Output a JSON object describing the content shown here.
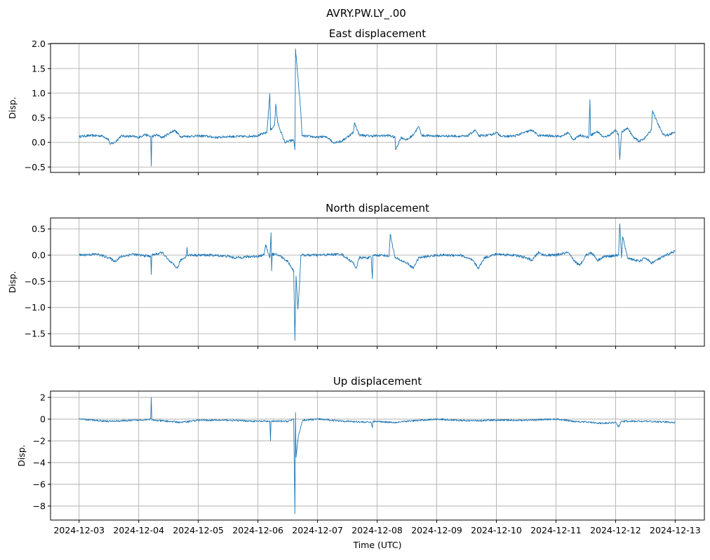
{
  "chart_data": {
    "type": "line",
    "title": "AVRY.PW.LY_.00",
    "xlabel": "Time (UTC)",
    "x_ticks": [
      "2024-12-03",
      "2024-12-04",
      "2024-12-05",
      "2024-12-06",
      "2024-12-07",
      "2024-12-08",
      "2024-12-09",
      "2024-12-10",
      "2024-12-11",
      "2024-12-12",
      "2024-12-13"
    ],
    "x_units": "days since 2024-12-03",
    "xlim": [
      -0.48,
      10.49
    ],
    "color": "#1f77b4",
    "grid": true,
    "panels": [
      {
        "title": "East displacement",
        "ylabel": "Disp.",
        "ylim": [
          -0.61,
          2.01
        ],
        "y_ticks": [
          2.0,
          1.5,
          1.0,
          0.5,
          0.0,
          -0.5
        ],
        "y_tick_labels": [
          "2.0",
          "1.5",
          "1.0",
          "0.5",
          "0.0",
          "−0.5"
        ],
        "show_x_labels": false,
        "noise": 0.025,
        "points": [
          [
            0,
            0.12
          ],
          [
            0.2,
            0.14
          ],
          [
            0.4,
            0.13
          ],
          [
            0.5,
            0.05
          ],
          [
            0.52,
            -0.04
          ],
          [
            0.6,
            0.0
          ],
          [
            0.7,
            0.13
          ],
          [
            0.9,
            0.12
          ],
          [
            1.0,
            0.1
          ],
          [
            1.1,
            0.16
          ],
          [
            1.2,
            0.12
          ],
          [
            1.21,
            -0.48
          ],
          [
            1.22,
            0.12
          ],
          [
            1.3,
            0.15
          ],
          [
            1.4,
            0.1
          ],
          [
            1.6,
            0.25
          ],
          [
            1.7,
            0.12
          ],
          [
            2.0,
            0.13
          ],
          [
            2.1,
            0.13
          ],
          [
            2.3,
            0.1
          ],
          [
            2.5,
            0.12
          ],
          [
            2.8,
            0.12
          ],
          [
            3.0,
            0.14
          ],
          [
            3.15,
            0.2
          ],
          [
            3.2,
            0.99
          ],
          [
            3.21,
            0.25
          ],
          [
            3.28,
            0.35
          ],
          [
            3.3,
            0.78
          ],
          [
            3.33,
            0.4
          ],
          [
            3.45,
            0.0
          ],
          [
            3.6,
            0.05
          ],
          [
            3.62,
            -0.15
          ],
          [
            3.63,
            1.9
          ],
          [
            3.68,
            1.2
          ],
          [
            3.72,
            0.6
          ],
          [
            3.74,
            0.13
          ],
          [
            3.9,
            0.12
          ],
          [
            4.0,
            0.1
          ],
          [
            4.1,
            0.12
          ],
          [
            4.2,
            0.08
          ],
          [
            4.25,
            0.0
          ],
          [
            4.4,
            0.02
          ],
          [
            4.6,
            0.2
          ],
          [
            4.62,
            0.4
          ],
          [
            4.7,
            0.15
          ],
          [
            4.9,
            0.13
          ],
          [
            5.2,
            0.14
          ],
          [
            5.3,
            0.1
          ],
          [
            5.31,
            -0.15
          ],
          [
            5.4,
            0.1
          ],
          [
            5.5,
            0.05
          ],
          [
            5.6,
            0.15
          ],
          [
            5.7,
            0.32
          ],
          [
            5.75,
            0.14
          ],
          [
            6.0,
            0.13
          ],
          [
            6.3,
            0.13
          ],
          [
            6.5,
            0.12
          ],
          [
            6.65,
            0.25
          ],
          [
            6.7,
            0.13
          ],
          [
            6.9,
            0.15
          ],
          [
            7.0,
            0.2
          ],
          [
            7.1,
            0.12
          ],
          [
            7.3,
            0.13
          ],
          [
            7.6,
            0.25
          ],
          [
            7.7,
            0.14
          ],
          [
            8.0,
            0.13
          ],
          [
            8.1,
            0.12
          ],
          [
            8.2,
            0.2
          ],
          [
            8.3,
            0.05
          ],
          [
            8.4,
            0.15
          ],
          [
            8.55,
            0.1
          ],
          [
            8.57,
            0.87
          ],
          [
            8.58,
            0.15
          ],
          [
            8.7,
            0.22
          ],
          [
            8.8,
            0.1
          ],
          [
            8.9,
            0.15
          ],
          [
            9.0,
            0.25
          ],
          [
            9.05,
            0.15
          ],
          [
            9.07,
            -0.35
          ],
          [
            9.1,
            0.2
          ],
          [
            9.2,
            0.3
          ],
          [
            9.3,
            0.1
          ],
          [
            9.4,
            0.02
          ],
          [
            9.5,
            0.1
          ],
          [
            9.6,
            0.25
          ],
          [
            9.62,
            0.65
          ],
          [
            9.7,
            0.4
          ],
          [
            9.8,
            0.15
          ],
          [
            9.9,
            0.15
          ],
          [
            10.0,
            0.22
          ]
        ]
      },
      {
        "title": "North displacement",
        "ylabel": "Disp.",
        "ylim": [
          -1.74,
          0.71
        ],
        "y_ticks": [
          0.5,
          0.0,
          -0.5,
          -1.0,
          -1.5
        ],
        "y_tick_labels": [
          "0.5",
          "0.0",
          "−0.5",
          "−1.0",
          "−1.5"
        ],
        "show_x_labels": false,
        "noise": 0.025,
        "points": [
          [
            0,
            0.0
          ],
          [
            0.3,
            0.02
          ],
          [
            0.5,
            -0.05
          ],
          [
            0.6,
            -0.12
          ],
          [
            0.7,
            -0.03
          ],
          [
            0.9,
            0.02
          ],
          [
            1.0,
            0.0
          ],
          [
            1.2,
            -0.02
          ],
          [
            1.21,
            -0.37
          ],
          [
            1.22,
            0.0
          ],
          [
            1.4,
            0.05
          ],
          [
            1.5,
            -0.1
          ],
          [
            1.65,
            -0.25
          ],
          [
            1.7,
            -0.1
          ],
          [
            1.8,
            -0.02
          ],
          [
            1.81,
            0.15
          ],
          [
            1.82,
            0.0
          ],
          [
            2.2,
            0.0
          ],
          [
            2.5,
            -0.02
          ],
          [
            2.6,
            -0.05
          ],
          [
            3.0,
            -0.02
          ],
          [
            3.1,
            0.0
          ],
          [
            3.13,
            0.2
          ],
          [
            3.2,
            -0.05
          ],
          [
            3.22,
            0.43
          ],
          [
            3.23,
            -0.3
          ],
          [
            3.24,
            0.02
          ],
          [
            3.35,
            0.0
          ],
          [
            3.5,
            -0.12
          ],
          [
            3.6,
            -0.3
          ],
          [
            3.62,
            -1.63
          ],
          [
            3.64,
            -0.4
          ],
          [
            3.67,
            -1.03
          ],
          [
            3.7,
            -0.5
          ],
          [
            3.72,
            0.0
          ],
          [
            4.0,
            0.0
          ],
          [
            4.4,
            0.02
          ],
          [
            4.6,
            -0.15
          ],
          [
            4.65,
            -0.25
          ],
          [
            4.7,
            -0.05
          ],
          [
            4.9,
            -0.05
          ],
          [
            4.92,
            -0.45
          ],
          [
            4.93,
            0.0
          ],
          [
            5.1,
            0.0
          ],
          [
            5.2,
            -0.02
          ],
          [
            5.22,
            0.4
          ],
          [
            5.3,
            -0.05
          ],
          [
            5.5,
            -0.15
          ],
          [
            5.6,
            -0.25
          ],
          [
            5.7,
            -0.05
          ],
          [
            6.0,
            0.0
          ],
          [
            6.4,
            0.0
          ],
          [
            6.6,
            -0.1
          ],
          [
            6.7,
            -0.25
          ],
          [
            6.8,
            -0.05
          ],
          [
            7.0,
            0.02
          ],
          [
            7.3,
            0.0
          ],
          [
            7.5,
            -0.05
          ],
          [
            7.6,
            -0.1
          ],
          [
            7.7,
            0.05
          ],
          [
            7.8,
            0.0
          ],
          [
            8.0,
            0.0
          ],
          [
            8.2,
            0.05
          ],
          [
            8.3,
            -0.1
          ],
          [
            8.4,
            -0.2
          ],
          [
            8.5,
            0.0
          ],
          [
            8.6,
            0.05
          ],
          [
            8.7,
            -0.1
          ],
          [
            8.8,
            -0.03
          ],
          [
            9.05,
            0.0
          ],
          [
            9.07,
            0.6
          ],
          [
            9.1,
            -0.05
          ],
          [
            9.12,
            0.35
          ],
          [
            9.2,
            -0.05
          ],
          [
            9.4,
            -0.12
          ],
          [
            9.5,
            -0.05
          ],
          [
            9.6,
            -0.15
          ],
          [
            9.8,
            -0.03
          ],
          [
            10.0,
            0.08
          ]
        ]
      },
      {
        "title": "Up displacement",
        "ylabel": "Disp.",
        "ylim": [
          -9.29,
          2.58
        ],
        "y_ticks": [
          2,
          0,
          -2,
          -4,
          -6,
          -8
        ],
        "y_tick_labels": [
          "2",
          "0",
          "−2",
          "−4",
          "−6",
          "−8"
        ],
        "show_x_labels": true,
        "noise": 0.08,
        "points": [
          [
            0,
            0
          ],
          [
            0.5,
            -0.2
          ],
          [
            1.0,
            -0.1
          ],
          [
            1.2,
            0
          ],
          [
            1.21,
            2.0
          ],
          [
            1.22,
            -0.1
          ],
          [
            1.5,
            -0.2
          ],
          [
            1.7,
            -0.3
          ],
          [
            2.0,
            -0.1
          ],
          [
            2.5,
            -0.1
          ],
          [
            3.0,
            -0.2
          ],
          [
            3.2,
            -0.2
          ],
          [
            3.21,
            -2.0
          ],
          [
            3.22,
            -0.2
          ],
          [
            3.5,
            -0.2
          ],
          [
            3.6,
            0.0
          ],
          [
            3.62,
            -8.7
          ],
          [
            3.63,
            0.6
          ],
          [
            3.64,
            -3.5
          ],
          [
            3.68,
            -1.5
          ],
          [
            3.75,
            -0.1
          ],
          [
            4.0,
            0
          ],
          [
            4.5,
            -0.2
          ],
          [
            4.9,
            -0.3
          ],
          [
            4.92,
            -0.8
          ],
          [
            4.93,
            -0.2
          ],
          [
            5.3,
            -0.3
          ],
          [
            5.5,
            -0.2
          ],
          [
            6.0,
            0
          ],
          [
            6.5,
            -0.15
          ],
          [
            7.0,
            -0.1
          ],
          [
            7.5,
            -0.1
          ],
          [
            8.0,
            0.0
          ],
          [
            8.3,
            -0.2
          ],
          [
            8.6,
            -0.3
          ],
          [
            8.8,
            -0.4
          ],
          [
            9.0,
            -0.3
          ],
          [
            9.05,
            -0.7
          ],
          [
            9.1,
            -0.2
          ],
          [
            9.5,
            -0.2
          ],
          [
            10.0,
            -0.3
          ]
        ]
      }
    ]
  }
}
